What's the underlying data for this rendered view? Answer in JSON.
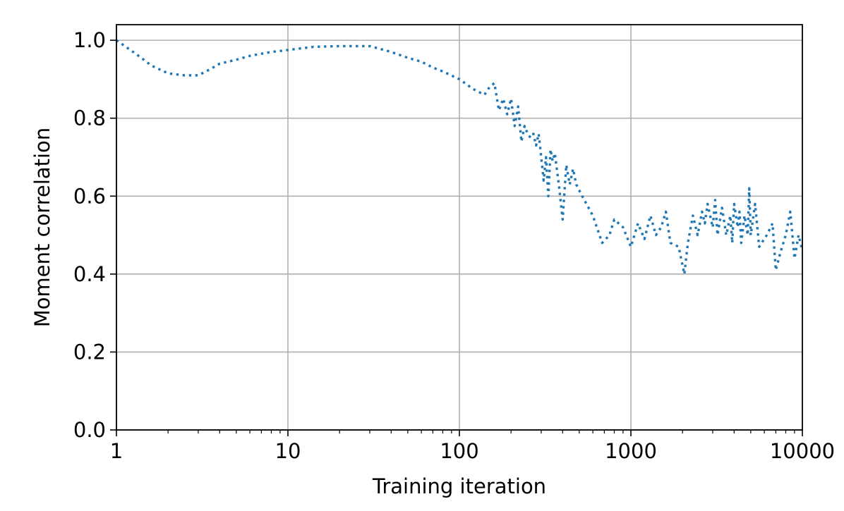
{
  "chart_data": {
    "type": "line",
    "xlabel": "Training iteration",
    "ylabel": "Moment correlation",
    "xscale": "log",
    "xlim": [
      1,
      10000
    ],
    "ylim": [
      0.0,
      1.04
    ],
    "xticks": [
      "1",
      "10",
      "100",
      "1000",
      "10000"
    ],
    "yticks": [
      "0.0",
      "0.2",
      "0.4",
      "0.6",
      "0.8",
      "1.0"
    ],
    "grid": true,
    "colors": {
      "series": "#1f77b4"
    },
    "series": [
      {
        "style": "dotted",
        "x": [
          1,
          1.3,
          1.6,
          2,
          2.5,
          3,
          3.5,
          4,
          5,
          6,
          8,
          10,
          14,
          20,
          30,
          40,
          50,
          60,
          70,
          80,
          100,
          120,
          140,
          150,
          160,
          170,
          180,
          190,
          200,
          210,
          220,
          230,
          240,
          250,
          260,
          270,
          280,
          290,
          300,
          310,
          320,
          330,
          340,
          350,
          360,
          380,
          400,
          420,
          440,
          460,
          480,
          520,
          600,
          680,
          750,
          800,
          900,
          1000,
          1100,
          1200,
          1300,
          1400,
          1500,
          1600,
          1700,
          1900,
          2050,
          2150,
          2300,
          2450,
          2600,
          2700,
          2800,
          3000,
          3100,
          3200,
          3400,
          3600,
          3800,
          3900,
          4000,
          4200,
          4300,
          4400,
          4600,
          4800,
          4900,
          5000,
          5300,
          5600,
          6200,
          6700,
          7000,
          7500,
          8000,
          8500,
          9000,
          9500,
          10000
        ],
        "y": [
          1.0,
          0.965,
          0.935,
          0.915,
          0.91,
          0.91,
          0.925,
          0.94,
          0.95,
          0.96,
          0.97,
          0.975,
          0.983,
          0.985,
          0.985,
          0.97,
          0.955,
          0.945,
          0.93,
          0.92,
          0.9,
          0.875,
          0.86,
          0.88,
          0.89,
          0.82,
          0.85,
          0.81,
          0.85,
          0.78,
          0.83,
          0.74,
          0.78,
          0.76,
          0.75,
          0.76,
          0.73,
          0.76,
          0.7,
          0.64,
          0.7,
          0.6,
          0.72,
          0.69,
          0.71,
          0.63,
          0.54,
          0.68,
          0.63,
          0.67,
          0.63,
          0.6,
          0.55,
          0.48,
          0.5,
          0.54,
          0.52,
          0.47,
          0.53,
          0.49,
          0.55,
          0.5,
          0.52,
          0.56,
          0.48,
          0.47,
          0.4,
          0.48,
          0.55,
          0.5,
          0.56,
          0.53,
          0.58,
          0.52,
          0.59,
          0.5,
          0.57,
          0.5,
          0.55,
          0.48,
          0.58,
          0.52,
          0.56,
          0.48,
          0.55,
          0.5,
          0.62,
          0.5,
          0.58,
          0.47,
          0.5,
          0.53,
          0.41,
          0.46,
          0.5,
          0.56,
          0.44,
          0.5,
          0.46
        ]
      }
    ]
  }
}
